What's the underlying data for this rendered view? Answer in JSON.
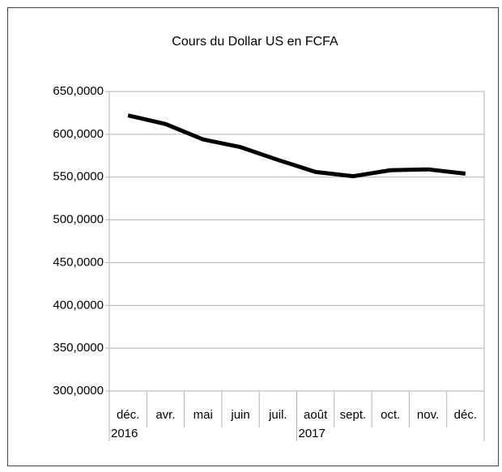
{
  "chart_data": {
    "type": "line",
    "title": "Cours du Dollar US en FCFA",
    "categories": [
      "déc.",
      "avr.",
      "mai",
      "juin",
      "juil.",
      "août",
      "sept.",
      "oct.",
      "nov.",
      "déc."
    ],
    "years": [
      "2016",
      null,
      null,
      null,
      null,
      "2017",
      null,
      null,
      null,
      null
    ],
    "series": [
      {
        "name": "Cours",
        "color": "#000000",
        "values": [
          622,
          612,
          594,
          585,
          570,
          556,
          551,
          558,
          559,
          554
        ]
      }
    ],
    "ylim": [
      300,
      650
    ],
    "yticks": [
      {
        "value": 300,
        "label": "300,0000"
      },
      {
        "value": 350,
        "label": "350,0000"
      },
      {
        "value": 400,
        "label": "400,0000"
      },
      {
        "value": 450,
        "label": "450,0000"
      },
      {
        "value": 500,
        "label": "500,0000"
      },
      {
        "value": 550,
        "label": "550,0000"
      },
      {
        "value": 600,
        "label": "600,0000"
      },
      {
        "value": 650,
        "label": "650,0000"
      }
    ],
    "grid": true
  }
}
